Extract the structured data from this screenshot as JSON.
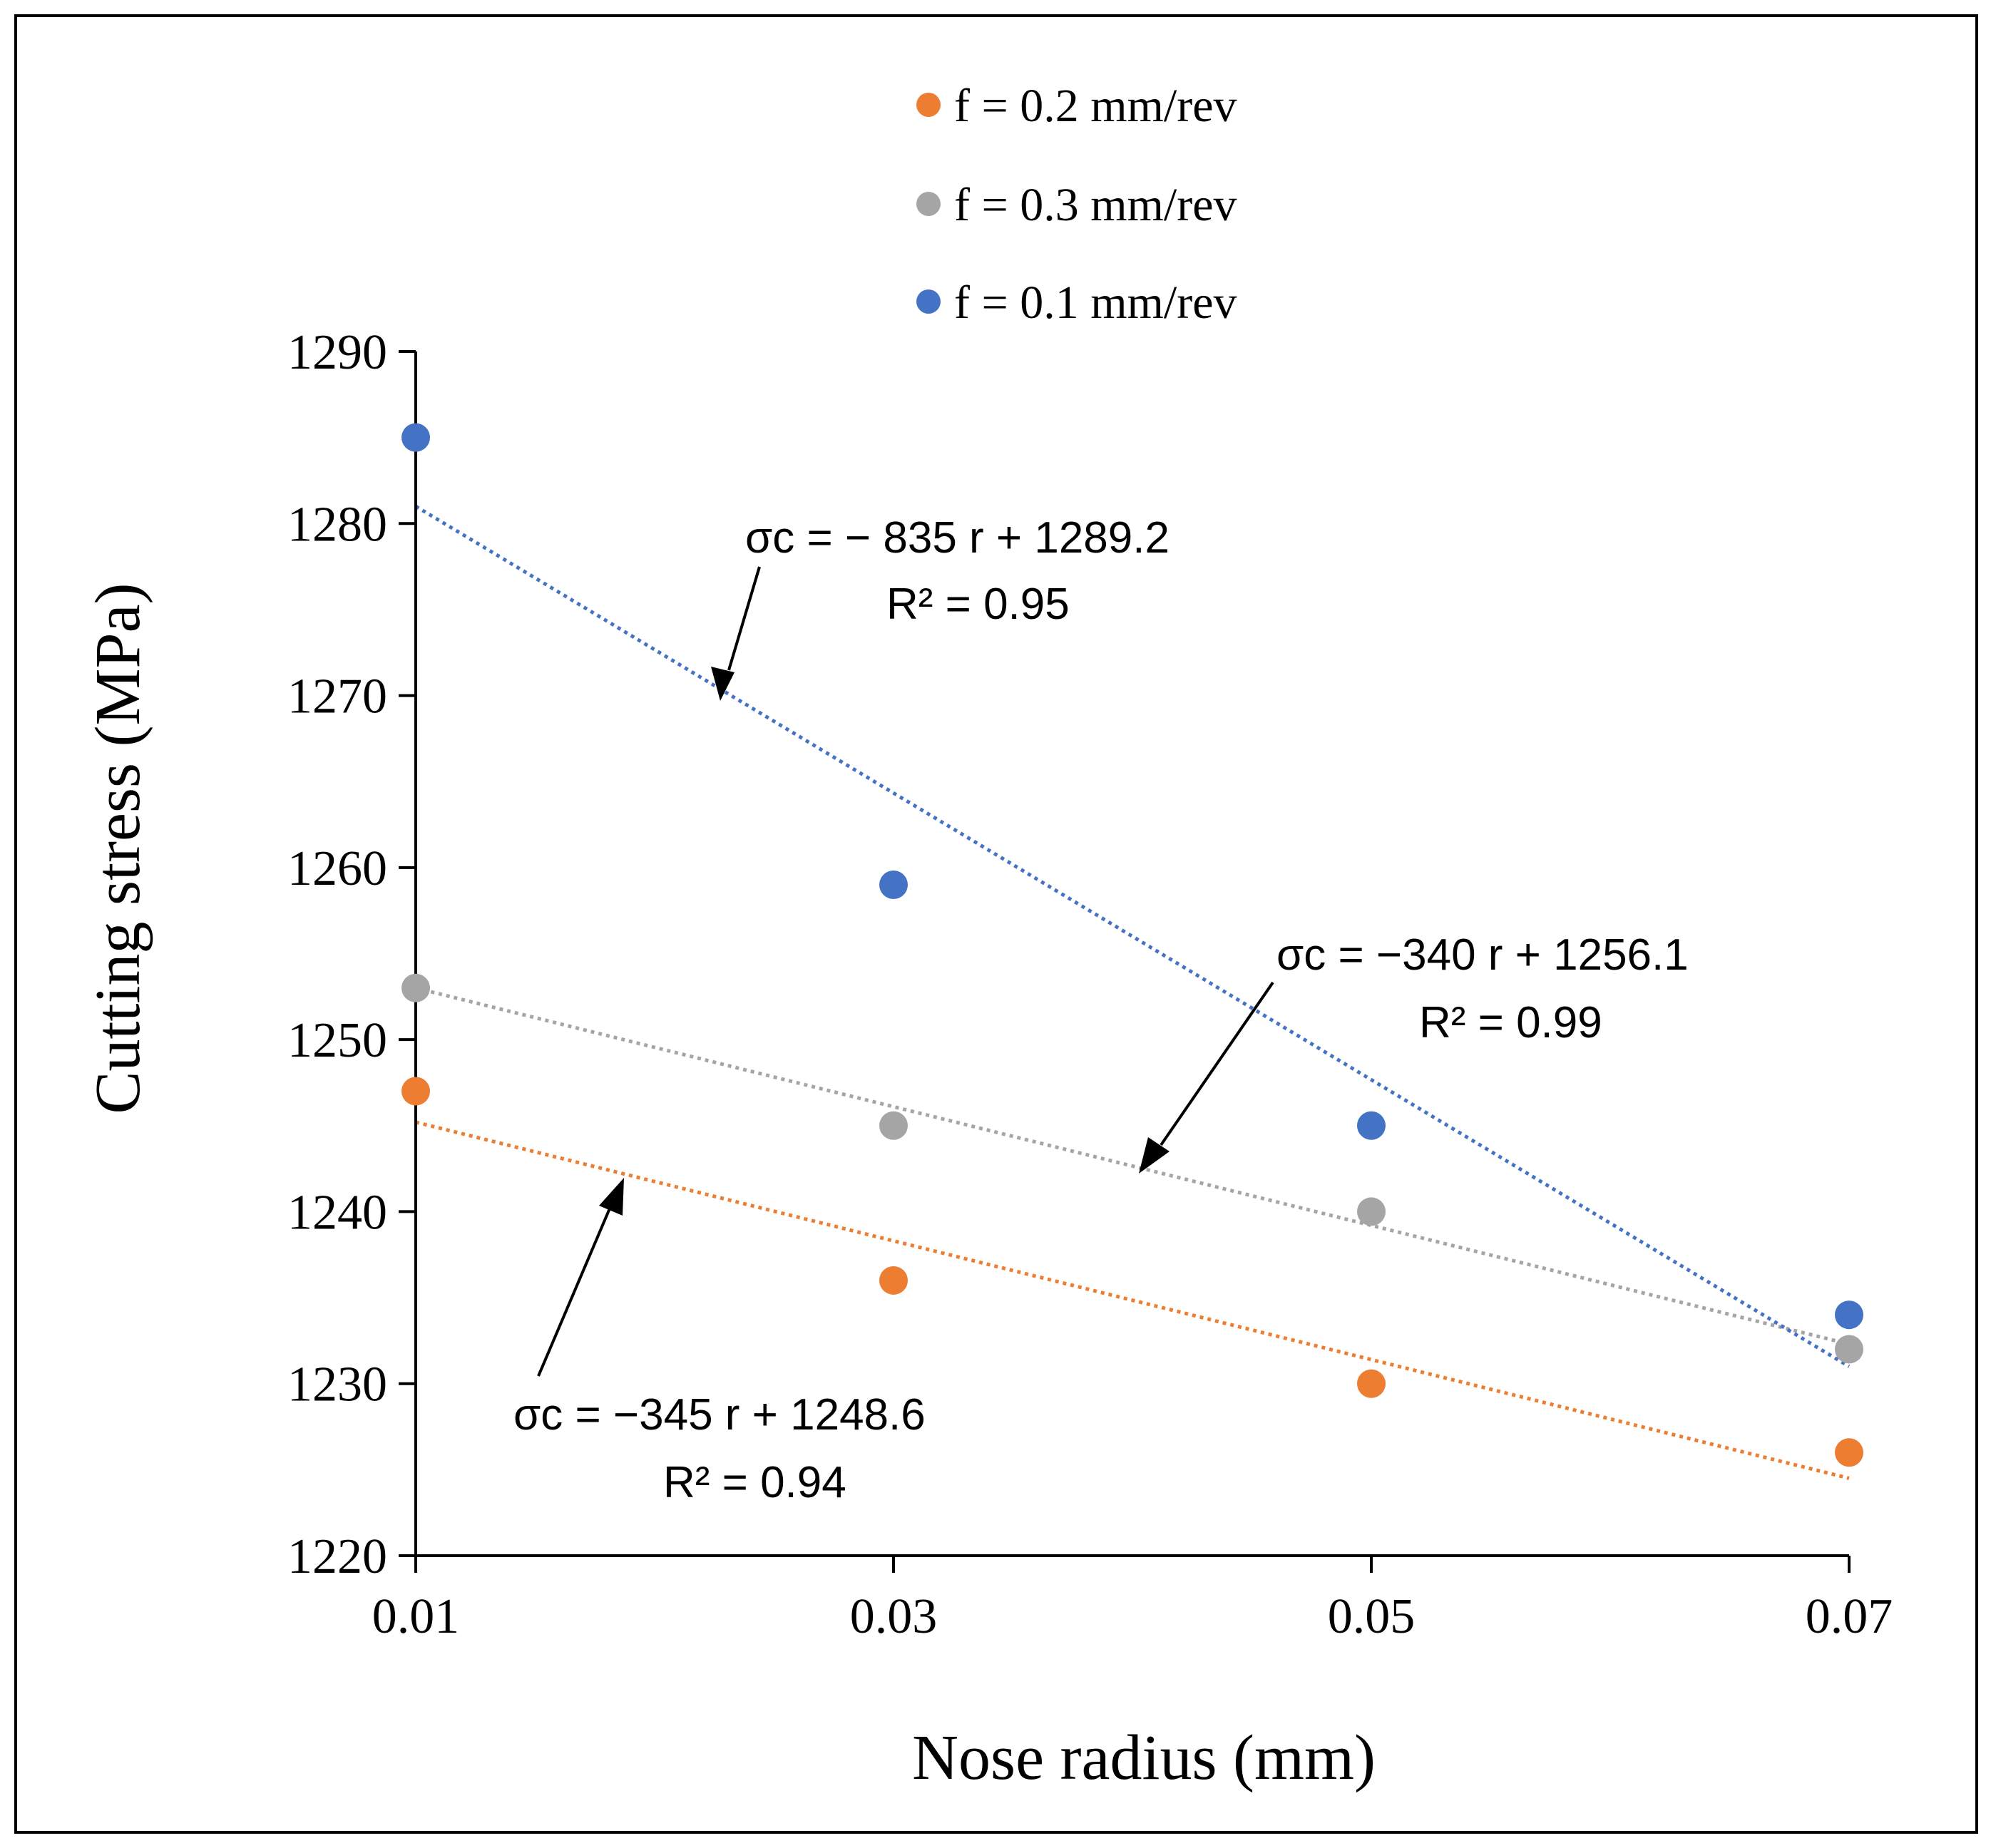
{
  "chart_data": {
    "type": "scatter",
    "xlabel": "Nose radius (mm)",
    "ylabel": "Cutting stress (MPa)",
    "x": [
      0.01,
      0.03,
      0.05,
      0.07
    ],
    "x_tick_labels": [
      "0.01",
      "0.03",
      "0.05",
      "0.07"
    ],
    "xlim": [
      0.01,
      0.07
    ],
    "ylim": [
      1220,
      1290
    ],
    "y_ticks": [
      1220,
      1230,
      1240,
      1250,
      1260,
      1270,
      1280,
      1290
    ],
    "y_tick_labels": [
      "1220",
      "1230",
      "1240",
      "1250",
      "1260",
      "1270",
      "1280",
      "1290"
    ],
    "grid": false,
    "legend_position": "top-center",
    "series": [
      {
        "name": "f = 0.2 mm/rev",
        "color": "#ED7D31",
        "values": [
          1247,
          1236,
          1230,
          1226
        ],
        "trendline": {
          "start": 1245.2,
          "end": 1224.5
        }
      },
      {
        "name": "f = 0.3 mm/rev",
        "color": "#A5A5A5",
        "values": [
          1253,
          1245,
          1240,
          1232
        ],
        "trendline": {
          "start": 1253.0,
          "end": 1232.3
        }
      },
      {
        "name": "f = 0.1 mm/rev",
        "color": "#4472C4",
        "values": [
          1285,
          1259,
          1245,
          1234
        ],
        "trendline": {
          "start": 1281.0,
          "end": 1231.0
        }
      }
    ],
    "annotations": [
      {
        "line1": "σc = − 835 r + 1289.2",
        "line2": "R² =  0.95",
        "series": "f = 0.1 mm/rev"
      },
      {
        "line1": "σc = −340 r + 1256.1",
        "line2": "R² = 0.99",
        "series": "f = 0.3 mm/rev"
      },
      {
        "line1": "σc = −345 r + 1248.6",
        "line2": "R² = 0.94",
        "series": "f = 0.2 mm/rev"
      }
    ]
  }
}
